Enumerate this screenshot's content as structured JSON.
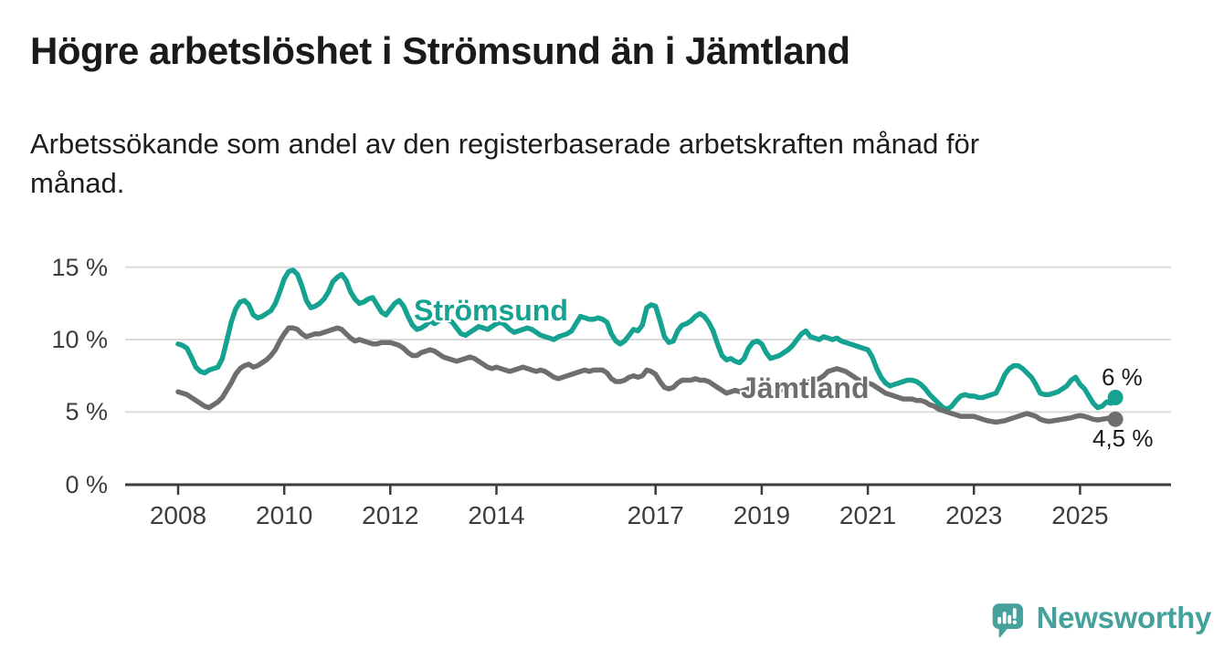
{
  "header": {
    "title": "Högre arbetslöshet i Strömsund än i Jämtland",
    "subtitle": "Arbetssökande som andel av den registerbaserade arbetskraften månad för månad.",
    "subtitle_lines": [
      "Arbetssökande som andel av den registerbaserade arbetskraften månad för",
      "månad."
    ]
  },
  "chart_data": {
    "type": "line",
    "title": "Högre arbetslöshet i Strömsund än i Jämtland",
    "x_axis": {
      "unit": "year-month",
      "start_year": 2008,
      "step_months": 1,
      "end_label_period": "2025-09",
      "ticks": [
        {
          "year": 2008,
          "label": "2008"
        },
        {
          "year": 2010,
          "label": "2010"
        },
        {
          "year": 2012,
          "label": "2012"
        },
        {
          "year": 2014,
          "label": "2014"
        },
        {
          "year": 2017,
          "label": "2017"
        },
        {
          "year": 2019,
          "label": "2019"
        },
        {
          "year": 2021,
          "label": "2021"
        },
        {
          "year": 2023,
          "label": "2023"
        },
        {
          "year": 2025,
          "label": "2025"
        }
      ]
    },
    "y_axis": {
      "ylim": [
        0,
        15
      ],
      "unit": "%",
      "ticks": [
        {
          "value": 15,
          "label": "15 %"
        },
        {
          "value": 10,
          "label": "10 %"
        },
        {
          "value": 5,
          "label": "5 %"
        },
        {
          "value": 0,
          "label": "0 %"
        }
      ],
      "grid": "horizontal-light"
    },
    "legend": "inline-labels-on-lines",
    "series": [
      {
        "name": "Strömsund",
        "color": "#16a290",
        "end_label": "6 %",
        "end_value": 6.0,
        "values": [
          9.7,
          9.6,
          9.4,
          8.8,
          8.1,
          7.8,
          7.7,
          7.9,
          8.0,
          8.1,
          8.7,
          9.9,
          11.2,
          12.1,
          12.6,
          12.7,
          12.4,
          11.7,
          11.5,
          11.6,
          11.8,
          12.0,
          12.5,
          13.3,
          14.2,
          14.7,
          14.8,
          14.5,
          13.7,
          12.7,
          12.2,
          12.3,
          12.5,
          12.8,
          13.3,
          14.0,
          14.3,
          14.5,
          14.1,
          13.3,
          12.8,
          12.5,
          12.6,
          12.8,
          12.9,
          12.4,
          11.9,
          11.7,
          12.1,
          12.5,
          12.7,
          12.3,
          11.6,
          11.0,
          10.7,
          10.8,
          11.0,
          11.3,
          11.1,
          11.3,
          11.5,
          11.4,
          11.2,
          10.8,
          10.4,
          10.3,
          10.5,
          10.7,
          10.9,
          10.8,
          10.7,
          10.9,
          11.1,
          11.2,
          11.0,
          10.7,
          10.5,
          10.6,
          10.7,
          10.8,
          10.7,
          10.5,
          10.3,
          10.2,
          10.1,
          10.0,
          10.2,
          10.3,
          10.4,
          10.6,
          11.1,
          11.6,
          11.5,
          11.4,
          11.4,
          11.5,
          11.4,
          11.2,
          10.4,
          9.9,
          9.7,
          9.9,
          10.3,
          10.7,
          10.6,
          11.0,
          12.2,
          12.4,
          12.3,
          11.3,
          10.2,
          9.8,
          9.9,
          10.6,
          11.0,
          11.1,
          11.3,
          11.6,
          11.8,
          11.6,
          11.2,
          10.6,
          9.7,
          8.9,
          8.6,
          8.7,
          8.5,
          8.4,
          8.7,
          9.4,
          9.8,
          9.9,
          9.7,
          9.1,
          8.7,
          8.8,
          8.9,
          9.1,
          9.3,
          9.6,
          10.0,
          10.4,
          10.6,
          10.2,
          10.1,
          10.0,
          10.2,
          10.1,
          10.0,
          10.1,
          9.9,
          9.8,
          9.7,
          9.6,
          9.5,
          9.4,
          9.3,
          8.8,
          8.0,
          7.4,
          7.0,
          6.8,
          6.9,
          7.0,
          7.1,
          7.2,
          7.2,
          7.1,
          6.9,
          6.6,
          6.2,
          5.9,
          5.6,
          5.3,
          5.2,
          5.4,
          5.8,
          6.1,
          6.2,
          6.1,
          6.1,
          6.0,
          6.0,
          6.1,
          6.2,
          6.3,
          6.9,
          7.6,
          8.0,
          8.2,
          8.2,
          8.0,
          7.7,
          7.4,
          6.9,
          6.3,
          6.2,
          6.2,
          6.3,
          6.4,
          6.6,
          6.8,
          7.2,
          7.4,
          6.9,
          6.6,
          6.1,
          5.6,
          5.3,
          5.4,
          5.7,
          5.6,
          6.0
        ]
      },
      {
        "name": "Jämtland",
        "color": "#6e6e70",
        "end_label": "4,5 %",
        "end_value": 4.5,
        "values": [
          6.4,
          6.3,
          6.2,
          6.0,
          5.8,
          5.6,
          5.4,
          5.3,
          5.5,
          5.7,
          6.0,
          6.5,
          7.0,
          7.6,
          8.0,
          8.2,
          8.3,
          8.1,
          8.2,
          8.4,
          8.6,
          8.9,
          9.3,
          9.9,
          10.4,
          10.8,
          10.8,
          10.7,
          10.4,
          10.2,
          10.3,
          10.4,
          10.4,
          10.5,
          10.6,
          10.7,
          10.8,
          10.7,
          10.4,
          10.1,
          9.9,
          10.0,
          9.9,
          9.8,
          9.7,
          9.7,
          9.8,
          9.8,
          9.8,
          9.7,
          9.6,
          9.4,
          9.1,
          8.9,
          8.9,
          9.1,
          9.2,
          9.3,
          9.2,
          9.0,
          8.8,
          8.7,
          8.6,
          8.5,
          8.6,
          8.7,
          8.8,
          8.7,
          8.5,
          8.3,
          8.1,
          8.0,
          8.1,
          8.0,
          7.9,
          7.8,
          7.9,
          8.0,
          8.1,
          8.0,
          7.9,
          7.8,
          7.9,
          7.8,
          7.6,
          7.4,
          7.3,
          7.4,
          7.5,
          7.6,
          7.7,
          7.8,
          7.9,
          7.8,
          7.9,
          7.9,
          7.9,
          7.7,
          7.3,
          7.1,
          7.1,
          7.2,
          7.4,
          7.5,
          7.4,
          7.5,
          7.9,
          7.8,
          7.6,
          7.1,
          6.7,
          6.6,
          6.7,
          7.0,
          7.2,
          7.2,
          7.2,
          7.3,
          7.2,
          7.2,
          7.1,
          6.9,
          6.7,
          6.5,
          6.3,
          6.4,
          6.5,
          6.4,
          6.5,
          6.6,
          6.7,
          6.7,
          6.6,
          6.5,
          6.4,
          6.5,
          6.5,
          6.6,
          6.7,
          6.7,
          6.8,
          6.9,
          7.0,
          7.1,
          7.2,
          7.3,
          7.5,
          7.8,
          7.9,
          8.0,
          7.9,
          7.8,
          7.6,
          7.4,
          7.2,
          7.1,
          7.0,
          6.9,
          6.7,
          6.5,
          6.3,
          6.2,
          6.1,
          6.0,
          5.9,
          5.9,
          5.9,
          5.8,
          5.8,
          5.7,
          5.5,
          5.4,
          5.2,
          5.1,
          5.0,
          4.9,
          4.8,
          4.7,
          4.7,
          4.7,
          4.7,
          4.6,
          4.5,
          4.4,
          4.35,
          4.3,
          4.35,
          4.4,
          4.5,
          4.6,
          4.7,
          4.8,
          4.9,
          4.8,
          4.7,
          4.5,
          4.4,
          4.35,
          4.4,
          4.45,
          4.5,
          4.55,
          4.6,
          4.7,
          4.75,
          4.7,
          4.6,
          4.5,
          4.45,
          4.5,
          4.55,
          4.6,
          4.5
        ]
      }
    ],
    "colors": {
      "grid": "#dbdbdb",
      "axis": "#3d3d3d",
      "tick_text": "#3d3d3d",
      "annotation_text": "#1a1a1a"
    }
  },
  "footer": {
    "brand": "Newsworthy",
    "brand_color": "#45a19b",
    "logo_icon": "bar-chart-speech-bubble-icon"
  }
}
